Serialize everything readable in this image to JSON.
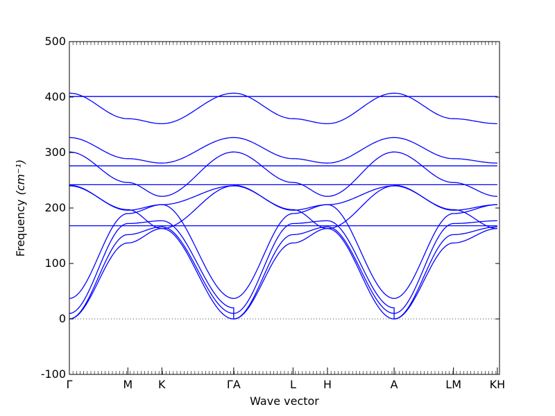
{
  "chart_data": {
    "type": "line",
    "xlabel": "Wave vector",
    "ylabel": "Frequency",
    "ylabel_unit": "(cm⁻¹)",
    "ylim": [
      -100,
      500
    ],
    "yticks": [
      -100,
      0,
      100,
      200,
      300,
      400,
      500
    ],
    "xlim": [
      0,
      1
    ],
    "xticks": [
      {
        "label": "Γ",
        "x": 0.0
      },
      {
        "label": "M",
        "x": 0.136
      },
      {
        "label": "K",
        "x": 0.215
      },
      {
        "label": "ΓA",
        "x": 0.382
      },
      {
        "label": "L",
        "x": 0.52
      },
      {
        "label": "H",
        "x": 0.6
      },
      {
        "label": "A",
        "x": 0.755
      },
      {
        "label": "LM",
        "x": 0.893
      },
      {
        "label": "KH",
        "x": 0.995
      }
    ],
    "zero_line": {
      "y": 0,
      "style": "dotted"
    },
    "series_color": "#0000ff",
    "branch_template": [
      {
        "key": "BB",
        "values": [
          0,
          137,
          163,
          0
        ]
      },
      {
        "key": "BA",
        "values": [
          0,
          152,
          166,
          10
        ]
      },
      {
        "key": "BC",
        "values": [
          10,
          172,
          177,
          20
        ]
      },
      {
        "key": "BD",
        "values": [
          37,
          190,
          206,
          37
        ]
      },
      {
        "key": "BE",
        "values": [
          168,
          168,
          168,
          168
        ]
      },
      {
        "key": "BF",
        "values": [
          240,
          197,
          163,
          240
        ]
      },
      {
        "key": "BG",
        "values": [
          241,
          196,
          206,
          240
        ]
      },
      {
        "key": "BH",
        "values": [
          242,
          242,
          242,
          242
        ]
      },
      {
        "key": "BI",
        "values": [
          276,
          276,
          276,
          276
        ]
      },
      {
        "key": "BJ",
        "values": [
          301,
          246,
          221,
          301
        ]
      },
      {
        "key": "BK",
        "values": [
          327,
          289,
          281,
          327
        ]
      },
      {
        "key": "BL",
        "values": [
          401,
          401,
          401,
          401
        ]
      },
      {
        "key": "BM",
        "values": [
          407,
          361,
          352,
          407
        ]
      }
    ],
    "segments": [
      {
        "from": 0.0,
        "to": 0.136,
        "a": 0,
        "b": 1
      },
      {
        "from": 0.136,
        "to": 0.215,
        "a": 1,
        "b": 2
      },
      {
        "from": 0.215,
        "to": 0.382,
        "a": 2,
        "b": 3
      },
      {
        "from": 0.382,
        "to": 0.52,
        "a": 0,
        "b": 1
      },
      {
        "from": 0.52,
        "to": 0.6,
        "a": 1,
        "b": 2
      },
      {
        "from": 0.6,
        "to": 0.755,
        "a": 2,
        "b": 3
      },
      {
        "from": 0.755,
        "to": 0.893,
        "a": 0,
        "b": 1
      },
      {
        "from": 0.893,
        "to": 0.995,
        "a": 1,
        "b": 2
      }
    ]
  }
}
